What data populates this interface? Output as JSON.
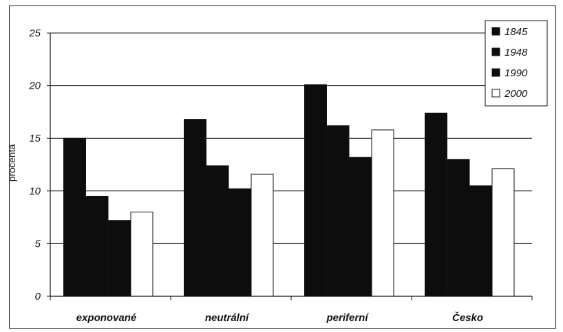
{
  "chart_data": {
    "type": "bar",
    "title": "",
    "xlabel": "",
    "ylabel": "procenta",
    "ylim": [
      0,
      25
    ],
    "yticks": [
      "0",
      "5",
      "10",
      "15",
      "20",
      "25"
    ],
    "categories": [
      "exponované",
      "neutrální",
      "periferní",
      "Česko"
    ],
    "series": [
      {
        "name": "1845",
        "values": [
          15.0,
          16.8,
          20.1,
          17.4
        ],
        "color": "#0d0d0d"
      },
      {
        "name": "1948",
        "values": [
          9.5,
          12.4,
          16.2,
          13.0
        ],
        "color": "#0d0d0d"
      },
      {
        "name": "1990",
        "values": [
          7.2,
          10.2,
          13.2,
          10.5
        ],
        "color": "#0d0d0d"
      },
      {
        "name": "2000",
        "values": [
          8.0,
          11.6,
          15.8,
          12.1
        ],
        "color": "#ffffff"
      }
    ],
    "grid": true,
    "legend_position": "top-right"
  }
}
